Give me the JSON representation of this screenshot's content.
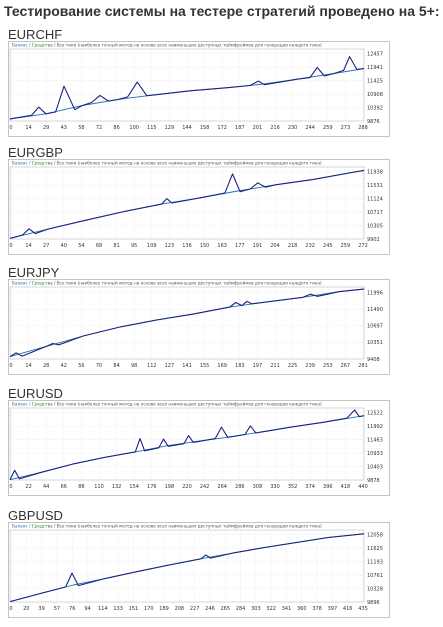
{
  "title": "Тестирование системы на тестере стратегий проведено на 5+:",
  "legend": {
    "balance": "Баланс",
    "equity": "Средства",
    "note": "Все тики (наиболее точный метод на основе всех наименьших доступных таймфреймов для генерации каждого тика)"
  },
  "colors": {
    "balance": "#1f6fb5",
    "equity": "#1a237e",
    "frame": "#9e9e9e",
    "grid": "#d0d0d0",
    "background": "#ffffff"
  },
  "chart_data": [
    {
      "type": "line",
      "name": "EURCHF",
      "x_ticks": [
        "0",
        "14",
        "29",
        "43",
        "58",
        "72",
        "86",
        "100",
        "115",
        "129",
        "144",
        "158",
        "172",
        "187",
        "201",
        "216",
        "230",
        "244",
        "259",
        "273",
        "288"
      ],
      "y_ticks": [
        "9876",
        "10392",
        "10908",
        "11425",
        "11941",
        "12457"
      ],
      "ylim": [
        9876,
        12700
      ],
      "xlim": [
        0,
        295
      ],
      "series": [
        {
          "name": "Баланс",
          "values": [
            [
              0,
              9960
            ],
            [
              30,
              10160
            ],
            [
              60,
              10480
            ],
            [
              90,
              10720
            ],
            [
              120,
              10900
            ],
            [
              150,
              11060
            ],
            [
              180,
              11180
            ],
            [
              210,
              11320
            ],
            [
              240,
              11520
            ],
            [
              270,
              11740
            ],
            [
              295,
              11930
            ]
          ]
        },
        {
          "name": "Средства",
          "values": [
            [
              0,
              9960
            ],
            [
              18,
              10100
            ],
            [
              24,
              10420
            ],
            [
              30,
              10160
            ],
            [
              38,
              10230
            ],
            [
              45,
              11240
            ],
            [
              54,
              10320
            ],
            [
              60,
              10480
            ],
            [
              68,
              10600
            ],
            [
              75,
              10880
            ],
            [
              82,
              10660
            ],
            [
              90,
              10720
            ],
            [
              98,
              10820
            ],
            [
              106,
              11400
            ],
            [
              114,
              10870
            ],
            [
              120,
              10900
            ],
            [
              150,
              11060
            ],
            [
              180,
              11180
            ],
            [
              200,
              11270
            ],
            [
              207,
              11440
            ],
            [
              212,
              11300
            ],
            [
              240,
              11520
            ],
            [
              250,
              11580
            ],
            [
              256,
              11980
            ],
            [
              262,
              11640
            ],
            [
              270,
              11740
            ],
            [
              278,
              11860
            ],
            [
              283,
              12400
            ],
            [
              289,
              11900
            ],
            [
              295,
              11930
            ]
          ]
        }
      ]
    },
    {
      "type": "line",
      "name": "EURGBP",
      "x_ticks": [
        "0",
        "14",
        "27",
        "40",
        "54",
        "68",
        "81",
        "95",
        "109",
        "123",
        "136",
        "150",
        "163",
        "177",
        "191",
        "204",
        "218",
        "232",
        "245",
        "259",
        "272"
      ],
      "y_ticks": [
        "9902",
        "10305",
        "10717",
        "11124",
        "11531",
        "11938"
      ],
      "ylim": [
        9902,
        12000
      ],
      "xlim": [
        0,
        280
      ],
      "series": [
        {
          "name": "Баланс",
          "values": [
            [
              0,
              9920
            ],
            [
              30,
              10190
            ],
            [
              60,
              10450
            ],
            [
              90,
              10700
            ],
            [
              120,
              10920
            ],
            [
              150,
              11100
            ],
            [
              180,
              11300
            ],
            [
              210,
              11480
            ],
            [
              240,
              11640
            ],
            [
              280,
              11900
            ]
          ]
        },
        {
          "name": "Средства",
          "values": [
            [
              0,
              9920
            ],
            [
              10,
              10020
            ],
            [
              15,
              10200
            ],
            [
              20,
              10060
            ],
            [
              30,
              10190
            ],
            [
              60,
              10450
            ],
            [
              90,
              10700
            ],
            [
              120,
              10920
            ],
            [
              124,
              11080
            ],
            [
              128,
              10950
            ],
            [
              150,
              11100
            ],
            [
              170,
              11240
            ],
            [
              176,
              11800
            ],
            [
              182,
              11280
            ],
            [
              190,
              11360
            ],
            [
              196,
              11540
            ],
            [
              202,
              11410
            ],
            [
              210,
              11480
            ],
            [
              240,
              11640
            ],
            [
              270,
              11840
            ],
            [
              280,
              11900
            ]
          ]
        }
      ]
    },
    {
      "type": "line",
      "name": "EURJPY",
      "x_ticks": [
        "0",
        "14",
        "28",
        "42",
        "56",
        "70",
        "84",
        "98",
        "112",
        "127",
        "141",
        "155",
        "169",
        "183",
        "197",
        "211",
        "225",
        "239",
        "253",
        "267",
        "281"
      ],
      "y_ticks": [
        "9408",
        "10351",
        "10697",
        "11490",
        "11996"
      ],
      "ylim": [
        9408,
        12200
      ],
      "xlim": [
        0,
        290
      ],
      "series": [
        {
          "name": "Баланс",
          "values": [
            [
              0,
              9500
            ],
            [
              30,
              9900
            ],
            [
              60,
              10300
            ],
            [
              90,
              10650
            ],
            [
              120,
              10920
            ],
            [
              150,
              11150
            ],
            [
              180,
              11420
            ],
            [
              210,
              11620
            ],
            [
              240,
              11800
            ],
            [
              270,
              12020
            ],
            [
              290,
              12120
            ]
          ]
        },
        {
          "name": "Средства",
          "values": [
            [
              0,
              9500
            ],
            [
              5,
              9650
            ],
            [
              10,
              9520
            ],
            [
              30,
              9900
            ],
            [
              35,
              10010
            ],
            [
              40,
              9960
            ],
            [
              60,
              10300
            ],
            [
              90,
              10650
            ],
            [
              120,
              10920
            ],
            [
              150,
              11150
            ],
            [
              180,
              11420
            ],
            [
              185,
              11600
            ],
            [
              190,
              11480
            ],
            [
              194,
              11640
            ],
            [
              198,
              11550
            ],
            [
              210,
              11620
            ],
            [
              240,
              11800
            ],
            [
              246,
              11920
            ],
            [
              252,
              11840
            ],
            [
              270,
              12020
            ],
            [
              290,
              12120
            ]
          ]
        }
      ]
    },
    {
      "type": "line",
      "name": "EURUSD",
      "x_ticks": [
        "0",
        "22",
        "44",
        "66",
        "88",
        "110",
        "132",
        "154",
        "176",
        "198",
        "220",
        "242",
        "264",
        "286",
        "308",
        "330",
        "352",
        "374",
        "396",
        "418",
        "440"
      ],
      "y_ticks": [
        "9878",
        "10403",
        "10933",
        "11463",
        "11992",
        "12522"
      ],
      "ylim": [
        9878,
        12700
      ],
      "xlim": [
        0,
        452
      ],
      "series": [
        {
          "name": "Баланс",
          "values": [
            [
              0,
              9890
            ],
            [
              40,
              10180
            ],
            [
              80,
              10500
            ],
            [
              120,
              10760
            ],
            [
              160,
              10980
            ],
            [
              200,
              11220
            ],
            [
              240,
              11400
            ],
            [
              280,
              11560
            ],
            [
              320,
              11760
            ],
            [
              360,
              11960
            ],
            [
              400,
              12140
            ],
            [
              452,
              12400
            ]
          ]
        },
        {
          "name": "Средства",
          "values": [
            [
              0,
              9890
            ],
            [
              6,
              10260
            ],
            [
              12,
              9920
            ],
            [
              40,
              10180
            ],
            [
              80,
              10500
            ],
            [
              120,
              10760
            ],
            [
              160,
              10980
            ],
            [
              166,
              11500
            ],
            [
              172,
              11020
            ],
            [
              190,
              11140
            ],
            [
              196,
              11480
            ],
            [
              202,
              11200
            ],
            [
              222,
              11300
            ],
            [
              228,
              11620
            ],
            [
              234,
              11350
            ],
            [
              262,
              11500
            ],
            [
              270,
              11950
            ],
            [
              278,
              11550
            ],
            [
              300,
              11660
            ],
            [
              307,
              12000
            ],
            [
              314,
              11720
            ],
            [
              360,
              11960
            ],
            [
              400,
              12140
            ],
            [
              430,
              12300
            ],
            [
              440,
              12620
            ],
            [
              446,
              12360
            ],
            [
              452,
              12400
            ]
          ]
        }
      ]
    },
    {
      "type": "line",
      "name": "GBPUSD",
      "x_ticks": [
        "0",
        "20",
        "39",
        "57",
        "76",
        "94",
        "114",
        "133",
        "151",
        "170",
        "189",
        "208",
        "227",
        "246",
        "265",
        "284",
        "303",
        "322",
        "341",
        "360",
        "378",
        "397",
        "416",
        "435"
      ],
      "y_ticks": [
        "9896",
        "10328",
        "10761",
        "11193",
        "11625",
        "12058"
      ],
      "ylim": [
        9896,
        12200
      ],
      "xlim": [
        0,
        445
      ],
      "series": [
        {
          "name": "Баланс",
          "values": [
            [
              0,
              9910
            ],
            [
              40,
              10180
            ],
            [
              80,
              10440
            ],
            [
              120,
              10650
            ],
            [
              160,
              10870
            ],
            [
              200,
              11080
            ],
            [
              240,
              11280
            ],
            [
              280,
              11460
            ],
            [
              320,
              11640
            ],
            [
              360,
              11800
            ],
            [
              400,
              11960
            ],
            [
              445,
              12080
            ]
          ]
        },
        {
          "name": "Средства",
          "values": [
            [
              0,
              9910
            ],
            [
              40,
              10180
            ],
            [
              70,
              10380
            ],
            [
              78,
              10820
            ],
            [
              86,
              10420
            ],
            [
              120,
              10650
            ],
            [
              160,
              10870
            ],
            [
              200,
              11080
            ],
            [
              240,
              11280
            ],
            [
              246,
              11400
            ],
            [
              252,
              11300
            ],
            [
              280,
              11460
            ],
            [
              320,
              11640
            ],
            [
              360,
              11800
            ],
            [
              400,
              11960
            ],
            [
              445,
              12080
            ]
          ]
        }
      ]
    }
  ]
}
